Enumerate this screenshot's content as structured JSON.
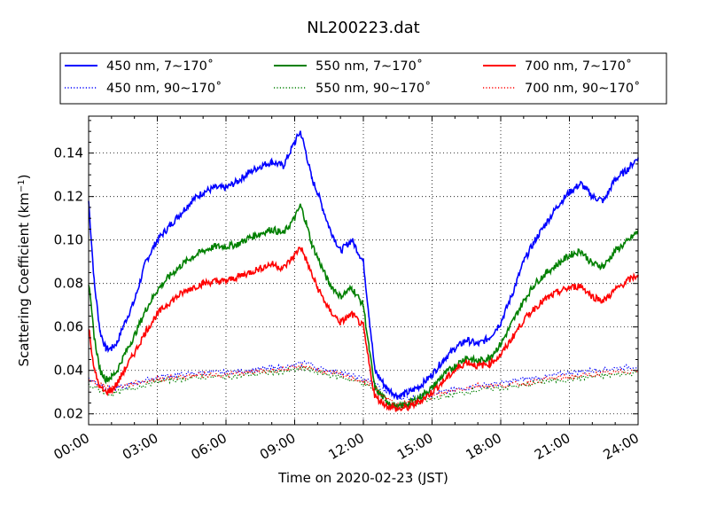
{
  "chart_data": {
    "type": "line",
    "title": "NL200223.dat",
    "xlabel": "Time on 2020-02-23 (JST)",
    "ylabel_main": "Scattering Coefficient (km",
    "ylabel_exp": "−1",
    "ylabel_close": ")",
    "x_unit": "hour of day",
    "xlim": [
      0,
      24
    ],
    "ylim": [
      0.015,
      0.157
    ],
    "xticks": [
      0,
      3,
      6,
      9,
      12,
      15,
      18,
      21,
      24
    ],
    "xtick_labels": [
      "00:00",
      "03:00",
      "06:00",
      "09:00",
      "12:00",
      "15:00",
      "18:00",
      "21:00",
      "24:00"
    ],
    "yticks": [
      0.02,
      0.04,
      0.06,
      0.08,
      0.1,
      0.12,
      0.14
    ],
    "ytick_labels": [
      "0.02",
      "0.04",
      "0.06",
      "0.08",
      "0.10",
      "0.12",
      "0.14"
    ],
    "grid": true,
    "legend_position": "top",
    "colors": {
      "blue": "#0000ff",
      "green": "#008000",
      "red": "#ff0000"
    },
    "series": [
      {
        "name": "450 nm, 7∼170˚",
        "color": "#0000ff",
        "style": "solid",
        "x": [
          0,
          0.25,
          0.5,
          0.75,
          1,
          1.25,
          1.5,
          2,
          2.5,
          3,
          3.5,
          4,
          4.5,
          5,
          5.5,
          6,
          6.5,
          7,
          7.5,
          8,
          8.5,
          9,
          9.25,
          9.5,
          9.75,
          10,
          10.5,
          11,
          11.5,
          12,
          12.25,
          12.5,
          13,
          13.5,
          14,
          14.5,
          15,
          15.5,
          16,
          16.5,
          17,
          17.5,
          18,
          18.5,
          19,
          19.5,
          20,
          20.5,
          21,
          21.5,
          22,
          22.5,
          23,
          23.5,
          24
        ],
        "y": [
          0.118,
          0.08,
          0.058,
          0.05,
          0.05,
          0.053,
          0.06,
          0.072,
          0.09,
          0.1,
          0.106,
          0.112,
          0.118,
          0.122,
          0.124,
          0.124,
          0.127,
          0.131,
          0.134,
          0.136,
          0.134,
          0.145,
          0.15,
          0.14,
          0.128,
          0.122,
          0.106,
          0.095,
          0.1,
          0.09,
          0.065,
          0.04,
          0.032,
          0.028,
          0.03,
          0.033,
          0.038,
          0.045,
          0.05,
          0.054,
          0.052,
          0.055,
          0.062,
          0.075,
          0.09,
          0.1,
          0.108,
          0.116,
          0.122,
          0.126,
          0.12,
          0.118,
          0.128,
          0.132,
          0.138
        ]
      },
      {
        "name": "450 nm, 90∼170˚",
        "color": "#0000ff",
        "style": "dotted",
        "x": [
          0,
          1,
          2,
          3,
          4,
          5,
          6,
          7,
          8,
          9,
          9.5,
          10,
          11,
          12,
          12.5,
          13,
          13.5,
          14,
          15,
          16,
          17,
          18,
          19,
          20,
          21,
          22,
          23,
          24
        ],
        "y": [
          0.036,
          0.031,
          0.034,
          0.037,
          0.038,
          0.039,
          0.039,
          0.04,
          0.041,
          0.042,
          0.044,
          0.041,
          0.039,
          0.036,
          0.034,
          0.03,
          0.028,
          0.027,
          0.029,
          0.031,
          0.033,
          0.034,
          0.036,
          0.037,
          0.039,
          0.04,
          0.041,
          0.042
        ]
      },
      {
        "name": "550 nm, 7∼170˚",
        "color": "#008000",
        "style": "solid",
        "x": [
          0,
          0.25,
          0.5,
          0.75,
          1,
          1.25,
          1.5,
          2,
          2.5,
          3,
          3.5,
          4,
          4.5,
          5,
          5.5,
          6,
          6.5,
          7,
          7.5,
          8,
          8.5,
          9,
          9.25,
          9.5,
          9.75,
          10,
          10.5,
          11,
          11.5,
          12,
          12.25,
          12.5,
          13,
          13.5,
          14,
          14.5,
          15,
          15.5,
          16,
          16.5,
          17,
          17.5,
          18,
          18.5,
          19,
          19.5,
          20,
          20.5,
          21,
          21.5,
          22,
          22.5,
          23,
          23.5,
          24
        ],
        "y": [
          0.08,
          0.055,
          0.04,
          0.036,
          0.037,
          0.04,
          0.046,
          0.056,
          0.068,
          0.077,
          0.083,
          0.088,
          0.092,
          0.095,
          0.097,
          0.097,
          0.098,
          0.101,
          0.103,
          0.105,
          0.103,
          0.11,
          0.116,
          0.108,
          0.098,
          0.092,
          0.08,
          0.074,
          0.078,
          0.07,
          0.05,
          0.032,
          0.026,
          0.023,
          0.025,
          0.028,
          0.032,
          0.038,
          0.042,
          0.046,
          0.044,
          0.046,
          0.052,
          0.062,
          0.072,
          0.08,
          0.085,
          0.089,
          0.093,
          0.095,
          0.089,
          0.088,
          0.095,
          0.099,
          0.104
        ]
      },
      {
        "name": "550 nm, 90∼170˚",
        "color": "#008000",
        "style": "dotted",
        "x": [
          0,
          1,
          2,
          3,
          4,
          5,
          6,
          7,
          8,
          9,
          9.5,
          10,
          11,
          12,
          12.5,
          13,
          13.5,
          14,
          15,
          16,
          17,
          18,
          19,
          20,
          21,
          22,
          23,
          24
        ],
        "y": [
          0.033,
          0.029,
          0.032,
          0.035,
          0.036,
          0.037,
          0.037,
          0.038,
          0.039,
          0.04,
          0.041,
          0.039,
          0.037,
          0.034,
          0.031,
          0.026,
          0.023,
          0.024,
          0.027,
          0.029,
          0.031,
          0.032,
          0.033,
          0.035,
          0.036,
          0.037,
          0.038,
          0.039
        ]
      },
      {
        "name": "700 nm, 7∼170˚",
        "color": "#ff0000",
        "style": "solid",
        "x": [
          0,
          0.25,
          0.5,
          0.75,
          1,
          1.25,
          1.5,
          2,
          2.5,
          3,
          3.5,
          4,
          4.5,
          5,
          5.5,
          6,
          6.5,
          7,
          7.5,
          8,
          8.5,
          9,
          9.25,
          9.5,
          9.75,
          10,
          10.5,
          11,
          11.5,
          12,
          12.25,
          12.5,
          13,
          13.5,
          14,
          14.5,
          15,
          15.5,
          16,
          16.5,
          17,
          17.5,
          18,
          18.5,
          19,
          19.5,
          20,
          20.5,
          21,
          21.5,
          22,
          22.5,
          23,
          23.5,
          24
        ],
        "y": [
          0.06,
          0.04,
          0.032,
          0.03,
          0.031,
          0.034,
          0.039,
          0.048,
          0.058,
          0.066,
          0.071,
          0.075,
          0.078,
          0.08,
          0.081,
          0.081,
          0.083,
          0.085,
          0.087,
          0.089,
          0.087,
          0.093,
          0.097,
          0.091,
          0.084,
          0.078,
          0.068,
          0.062,
          0.066,
          0.06,
          0.043,
          0.028,
          0.024,
          0.022,
          0.023,
          0.026,
          0.03,
          0.035,
          0.04,
          0.044,
          0.042,
          0.043,
          0.047,
          0.055,
          0.063,
          0.069,
          0.073,
          0.076,
          0.078,
          0.079,
          0.074,
          0.072,
          0.077,
          0.081,
          0.084
        ]
      },
      {
        "name": "700 nm, 90∼170˚",
        "color": "#ff0000",
        "style": "dotted",
        "x": [
          0,
          1,
          2,
          3,
          4,
          5,
          6,
          7,
          8,
          9,
          9.5,
          10,
          11,
          12,
          12.5,
          13,
          13.5,
          14,
          15,
          16,
          17,
          18,
          19,
          20,
          21,
          22,
          23,
          24
        ],
        "y": [
          0.035,
          0.032,
          0.034,
          0.036,
          0.037,
          0.038,
          0.038,
          0.039,
          0.04,
          0.041,
          0.042,
          0.04,
          0.038,
          0.035,
          0.032,
          0.027,
          0.024,
          0.025,
          0.028,
          0.031,
          0.033,
          0.033,
          0.034,
          0.036,
          0.037,
          0.038,
          0.039,
          0.04
        ]
      }
    ]
  }
}
